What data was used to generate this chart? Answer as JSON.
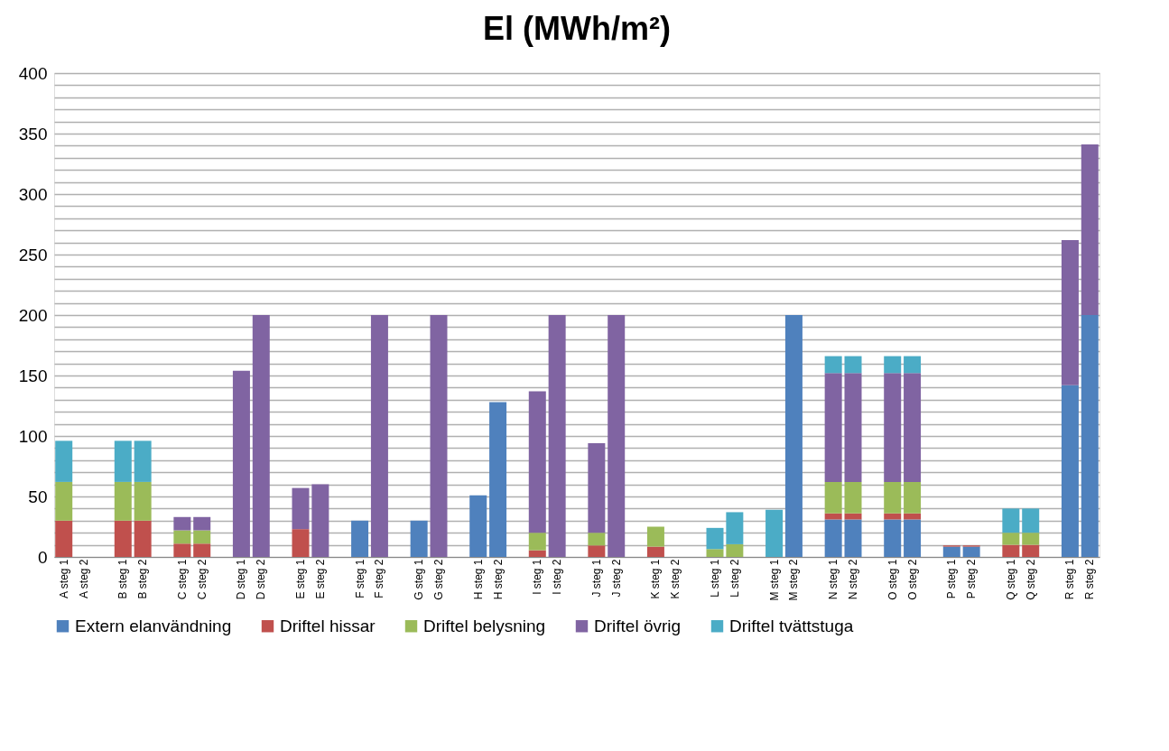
{
  "chart_data": {
    "type": "bar",
    "stacked": true,
    "title": "El (MWh/m²)",
    "categories": [
      "A steg 1",
      "A steg 2",
      null,
      "B steg 1",
      "B steg 2",
      null,
      "C steg 1",
      "C steg 2",
      null,
      "D steg 1",
      "D steg 2",
      null,
      "E steg 1",
      "E steg 2",
      null,
      "F steg 1",
      "F steg 2",
      null,
      "G steg 1",
      "G steg 2",
      null,
      "H steg 1",
      "H steg 2",
      null,
      "I steg 1",
      "I steg 2",
      null,
      "J steg 1",
      "J steg 2",
      null,
      "K steg 1",
      "K steg 2",
      null,
      "L steg 1",
      "L steg 2",
      null,
      "M steg 1",
      "M steg 2",
      null,
      "N steg 1",
      "N steg 2",
      null,
      "O steg 1",
      "O steg 2",
      null,
      "P steg 1",
      "P steg 2",
      null,
      "Q steg 1",
      "Q steg 2",
      null,
      "R steg 1",
      "R steg 2"
    ],
    "series": [
      {
        "name": "Extern elanvändning",
        "color": "#4f81bd",
        "values": [
          null,
          null,
          null,
          null,
          null,
          null,
          null,
          null,
          null,
          null,
          null,
          null,
          null,
          null,
          null,
          30,
          null,
          null,
          30,
          null,
          null,
          51,
          128,
          null,
          null,
          null,
          null,
          null,
          null,
          null,
          null,
          null,
          null,
          null,
          null,
          null,
          null,
          200,
          null,
          31,
          31,
          null,
          31,
          31,
          null,
          8.5,
          8.5,
          null,
          null,
          null,
          null,
          142,
          200
        ]
      },
      {
        "name": "Driftel hissar",
        "color": "#c0504d",
        "values": [
          30,
          null,
          null,
          30,
          30,
          null,
          11,
          11,
          null,
          null,
          null,
          null,
          23,
          null,
          null,
          null,
          null,
          null,
          null,
          null,
          null,
          null,
          null,
          null,
          5.5,
          null,
          null,
          9.5,
          null,
          null,
          8.5,
          null,
          null,
          null,
          null,
          null,
          null,
          null,
          null,
          5,
          5,
          null,
          5,
          5,
          null,
          1,
          1,
          null,
          10,
          10,
          null,
          null,
          null
        ]
      },
      {
        "name": "Driftel belysning",
        "color": "#9bbb59",
        "values": [
          32,
          null,
          null,
          32,
          32,
          null,
          11,
          11,
          null,
          null,
          null,
          null,
          null,
          null,
          null,
          null,
          null,
          null,
          null,
          null,
          null,
          null,
          null,
          null,
          14.5,
          null,
          null,
          10.5,
          null,
          null,
          16.5,
          null,
          null,
          6.5,
          10.5,
          null,
          null,
          null,
          null,
          26,
          26,
          null,
          26,
          26,
          null,
          null,
          null,
          null,
          10,
          10,
          null,
          null,
          null
        ]
      },
      {
        "name": "Driftel övrig",
        "color": "#8064a2",
        "values": [
          null,
          null,
          null,
          null,
          null,
          null,
          11,
          11,
          null,
          154,
          200,
          null,
          34,
          60,
          null,
          null,
          200,
          null,
          null,
          200,
          null,
          null,
          null,
          null,
          117,
          200,
          null,
          74,
          200,
          null,
          null,
          null,
          null,
          null,
          null,
          null,
          null,
          null,
          null,
          90,
          90,
          null,
          90,
          90,
          null,
          null,
          null,
          null,
          null,
          null,
          null,
          120,
          141
        ]
      },
      {
        "name": "Driftel tvättstuga",
        "color": "#4bacc6",
        "values": [
          34,
          null,
          null,
          34,
          34,
          null,
          null,
          null,
          null,
          null,
          null,
          null,
          null,
          null,
          null,
          null,
          null,
          null,
          null,
          null,
          null,
          null,
          null,
          null,
          null,
          null,
          null,
          null,
          null,
          null,
          null,
          null,
          null,
          17.5,
          26.5,
          null,
          39,
          null,
          null,
          14,
          14,
          null,
          14,
          14,
          null,
          null,
          null,
          null,
          20,
          20,
          null,
          null,
          null
        ]
      }
    ],
    "ylim": [
      0,
      400
    ],
    "yticks": [
      0,
      {
        "value": 10,
        "label": null
      },
      {
        "value": 20,
        "label": null
      },
      {
        "value": 30,
        "label": null
      },
      {
        "value": 40,
        "label": null
      },
      50,
      {
        "value": 60,
        "label": null
      },
      {
        "value": 70,
        "label": null
      },
      {
        "value": 80,
        "label": null
      },
      {
        "value": 90,
        "label": null
      },
      100,
      {
        "value": 110,
        "label": null
      },
      {
        "value": 120,
        "label": null
      },
      {
        "value": 130,
        "label": null
      },
      {
        "value": 140,
        "label": null
      },
      150,
      {
        "value": 160,
        "label": null
      },
      {
        "value": 170,
        "label": null
      },
      {
        "value": 180,
        "label": null
      },
      {
        "value": 190,
        "label": null
      },
      200,
      {
        "value": 210,
        "label": null
      },
      {
        "value": 220,
        "label": null
      },
      {
        "value": 230,
        "label": null
      },
      {
        "value": 240,
        "label": null
      },
      250,
      {
        "value": 260,
        "label": null
      },
      {
        "value": 270,
        "label": null
      },
      {
        "value": 280,
        "label": null
      },
      {
        "value": 290,
        "label": null
      },
      300,
      {
        "value": 310,
        "label": null
      },
      {
        "value": 320,
        "label": null
      },
      {
        "value": 330,
        "label": null
      },
      {
        "value": 340,
        "label": null
      },
      350,
      {
        "value": 360,
        "label": null
      },
      {
        "value": 370,
        "label": null
      },
      {
        "value": 380,
        "label": null
      },
      {
        "value": 390,
        "label": null
      },
      400
    ],
    "grid": "y",
    "legend": "bottom"
  }
}
